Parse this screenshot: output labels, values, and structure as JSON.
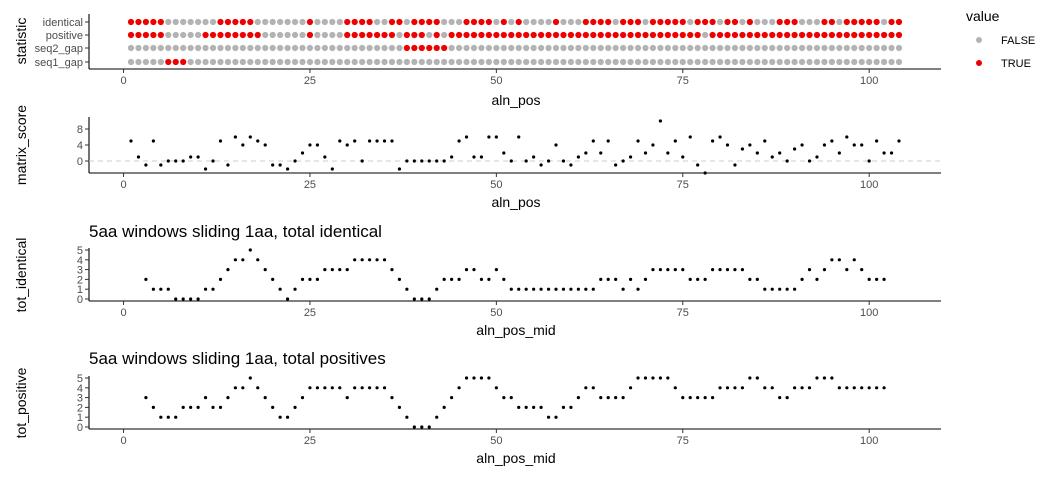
{
  "chart_data": [
    {
      "type": "scatter",
      "subtype": "categorical-dot-matrix",
      "title": "",
      "xlabel": "aln_pos",
      "ylabel": "statistic",
      "xlim": [
        1,
        104
      ],
      "x_ticks": [
        0,
        25,
        50,
        75,
        100
      ],
      "categories": [
        "identical",
        "positive",
        "seq2_gap",
        "seq1_gap"
      ],
      "series": [
        {
          "category": "identical",
          "true_positions": [
            1,
            2,
            3,
            4,
            5,
            13,
            14,
            15,
            16,
            17,
            25,
            30,
            31,
            32,
            33,
            36,
            37,
            39,
            40,
            41,
            42,
            46,
            47,
            48,
            49,
            51,
            53,
            58,
            62,
            63,
            64,
            65,
            67,
            68,
            69,
            71,
            72,
            73,
            74,
            75,
            77,
            78,
            79,
            81,
            82,
            84,
            88,
            89,
            90,
            94,
            95,
            97,
            98,
            99,
            100,
            101,
            103,
            104
          ]
        },
        {
          "category": "positive",
          "true_positions": [
            1,
            2,
            3,
            4,
            5,
            11,
            12,
            13,
            14,
            15,
            16,
            17,
            18,
            25,
            30,
            31,
            32,
            33,
            34,
            35,
            36,
            38,
            39,
            40,
            42,
            44,
            45,
            46,
            47,
            48,
            49,
            50,
            51,
            52,
            53,
            54,
            55,
            56,
            57,
            58,
            59,
            60,
            61,
            62,
            63,
            64,
            65,
            66,
            67,
            68,
            69,
            70,
            71,
            72,
            73,
            74,
            75,
            76,
            77,
            79,
            80,
            81,
            82,
            83,
            84,
            85,
            86,
            87,
            88,
            89,
            90,
            91,
            92,
            93,
            94,
            95,
            96,
            97,
            98,
            99,
            100,
            101,
            102,
            103,
            104
          ]
        },
        {
          "category": "seq2_gap",
          "true_positions": [
            38,
            39,
            40,
            41,
            42,
            43
          ]
        },
        {
          "category": "seq1_gap",
          "true_positions": [
            6,
            7,
            8
          ]
        }
      ],
      "legend": {
        "title": "value",
        "entries": [
          "FALSE",
          "TRUE"
        ],
        "colors": [
          "#b3b3b3",
          "#ee0000"
        ],
        "position": "right"
      }
    },
    {
      "type": "scatter",
      "title": "",
      "xlabel": "aln_pos",
      "ylabel": "matrix_score",
      "xlim": [
        1,
        104
      ],
      "ylim": [
        -3,
        11
      ],
      "x_ticks": [
        0,
        25,
        50,
        75,
        100
      ],
      "y_ticks": [
        0,
        4,
        8
      ],
      "reference_line": {
        "y": 0,
        "style": "dashed",
        "color": "#cccccc"
      },
      "x": [
        1,
        2,
        3,
        4,
        5,
        6,
        7,
        8,
        9,
        10,
        11,
        12,
        13,
        14,
        15,
        16,
        17,
        18,
        19,
        20,
        21,
        22,
        23,
        24,
        25,
        26,
        27,
        28,
        29,
        30,
        31,
        32,
        33,
        34,
        35,
        36,
        37,
        38,
        39,
        40,
        41,
        42,
        43,
        44,
        45,
        46,
        47,
        48,
        49,
        50,
        51,
        52,
        53,
        54,
        55,
        56,
        57,
        58,
        59,
        60,
        61,
        62,
        63,
        64,
        65,
        66,
        67,
        68,
        69,
        70,
        71,
        72,
        73,
        74,
        75,
        76,
        77,
        78,
        79,
        80,
        81,
        82,
        83,
        84,
        85,
        86,
        87,
        88,
        89,
        90,
        91,
        92,
        93,
        94,
        95,
        96,
        97,
        98,
        99,
        100,
        101,
        102,
        103,
        104
      ],
      "y": [
        5,
        1,
        -1,
        5,
        -1,
        0,
        0,
        0,
        1,
        1,
        -2,
        0,
        5,
        -1,
        6,
        4,
        6,
        5,
        4,
        -1,
        -1,
        -2,
        0,
        2,
        4,
        4,
        1,
        -2,
        5,
        4,
        5,
        0,
        5,
        5,
        5,
        5,
        -2,
        0,
        0,
        0,
        0,
        0,
        0,
        1,
        5,
        6,
        1,
        1,
        6,
        6,
        2,
        0,
        6,
        0,
        1,
        -1,
        0,
        4,
        0,
        -1,
        1,
        2,
        5,
        2,
        5,
        -1,
        0,
        1,
        5,
        2,
        4,
        10,
        2,
        5,
        1,
        6,
        -1,
        -3,
        5,
        6,
        4,
        -1,
        3,
        4,
        2,
        5,
        1,
        2,
        0,
        3,
        4,
        0,
        1,
        4,
        5,
        2,
        6,
        4,
        4,
        0,
        5,
        2,
        2,
        5
      ]
    },
    {
      "type": "scatter",
      "title": "5aa windows sliding 1aa, total identical",
      "xlabel": "aln_pos_mid",
      "ylabel": "tot_identical",
      "xlim": [
        1,
        104
      ],
      "ylim": [
        0,
        5
      ],
      "x_ticks": [
        0,
        25,
        50,
        75,
        100
      ],
      "y_ticks": [
        0,
        1,
        2,
        3,
        4,
        5
      ],
      "x": [
        3,
        4,
        5,
        6,
        7,
        8,
        9,
        10,
        11,
        12,
        13,
        14,
        15,
        16,
        17,
        18,
        19,
        20,
        21,
        22,
        23,
        24,
        25,
        26,
        27,
        28,
        29,
        30,
        31,
        32,
        33,
        34,
        35,
        36,
        37,
        38,
        39,
        40,
        41,
        42,
        43,
        44,
        45,
        46,
        47,
        48,
        49,
        50,
        51,
        52,
        53,
        54,
        55,
        56,
        57,
        58,
        59,
        60,
        61,
        62,
        63,
        64,
        65,
        66,
        67,
        68,
        69,
        70,
        71,
        72,
        73,
        74,
        75,
        76,
        77,
        78,
        79,
        80,
        81,
        82,
        83,
        84,
        85,
        86,
        87,
        88,
        89,
        90,
        91,
        92,
        93,
        94,
        95,
        96,
        97,
        98,
        99,
        100,
        101,
        102
      ],
      "y": [
        2,
        1,
        1,
        1,
        0,
        0,
        0,
        0,
        1,
        1,
        2,
        3,
        4,
        4,
        5,
        4,
        3,
        2,
        1,
        0,
        1,
        2,
        2,
        2,
        3,
        3,
        3,
        3,
        4,
        4,
        4,
        4,
        4,
        3,
        2,
        1,
        0,
        0,
        0,
        1,
        2,
        2,
        2,
        3,
        3,
        2,
        2,
        3,
        2,
        1,
        1,
        1,
        1,
        1,
        1,
        1,
        1,
        1,
        1,
        1,
        1,
        2,
        2,
        2,
        1,
        2,
        1,
        2,
        3,
        3,
        3,
        3,
        3,
        2,
        2,
        2,
        3,
        3,
        3,
        3,
        3,
        2,
        2,
        1,
        1,
        1,
        1,
        1,
        2,
        3,
        2,
        3,
        4,
        4,
        3,
        4,
        3,
        2,
        2,
        2
      ]
    },
    {
      "type": "scatter",
      "title": "5aa windows sliding 1aa, total positives",
      "xlabel": "aln_pos_mid",
      "ylabel": "tot_positive",
      "xlim": [
        1,
        104
      ],
      "ylim": [
        0,
        5
      ],
      "x_ticks": [
        0,
        25,
        50,
        75,
        100
      ],
      "y_ticks": [
        0,
        1,
        2,
        3,
        4,
        5
      ],
      "x": [
        3,
        4,
        5,
        6,
        7,
        8,
        9,
        10,
        11,
        12,
        13,
        14,
        15,
        16,
        17,
        18,
        19,
        20,
        21,
        22,
        23,
        24,
        25,
        26,
        27,
        28,
        29,
        30,
        31,
        32,
        33,
        34,
        35,
        36,
        37,
        38,
        39,
        40,
        41,
        42,
        43,
        44,
        45,
        46,
        47,
        48,
        49,
        50,
        51,
        52,
        53,
        54,
        55,
        56,
        57,
        58,
        59,
        60,
        61,
        62,
        63,
        64,
        65,
        66,
        67,
        68,
        69,
        70,
        71,
        72,
        73,
        74,
        75,
        76,
        77,
        78,
        79,
        80,
        81,
        82,
        83,
        84,
        85,
        86,
        87,
        88,
        89,
        90,
        91,
        92,
        93,
        94,
        95,
        96,
        97,
        98,
        99,
        100,
        101,
        102
      ],
      "y": [
        3,
        2,
        1,
        1,
        1,
        2,
        2,
        2,
        3,
        2,
        2,
        3,
        4,
        4,
        5,
        4,
        3,
        2,
        1,
        1,
        2,
        3,
        4,
        4,
        4,
        4,
        4,
        3,
        4,
        4,
        4,
        4,
        4,
        3,
        2,
        1,
        0,
        0,
        0,
        1,
        2,
        3,
        4,
        5,
        5,
        5,
        5,
        4,
        3,
        3,
        2,
        2,
        2,
        2,
        1,
        1,
        2,
        2,
        3,
        4,
        4,
        3,
        3,
        3,
        3,
        4,
        5,
        5,
        5,
        5,
        5,
        4,
        3,
        3,
        3,
        3,
        3,
        4,
        4,
        4,
        4,
        5,
        5,
        4,
        4,
        3,
        3,
        4,
        4,
        4,
        5,
        5,
        5,
        4,
        4,
        4,
        4,
        4,
        4,
        4
      ]
    }
  ]
}
